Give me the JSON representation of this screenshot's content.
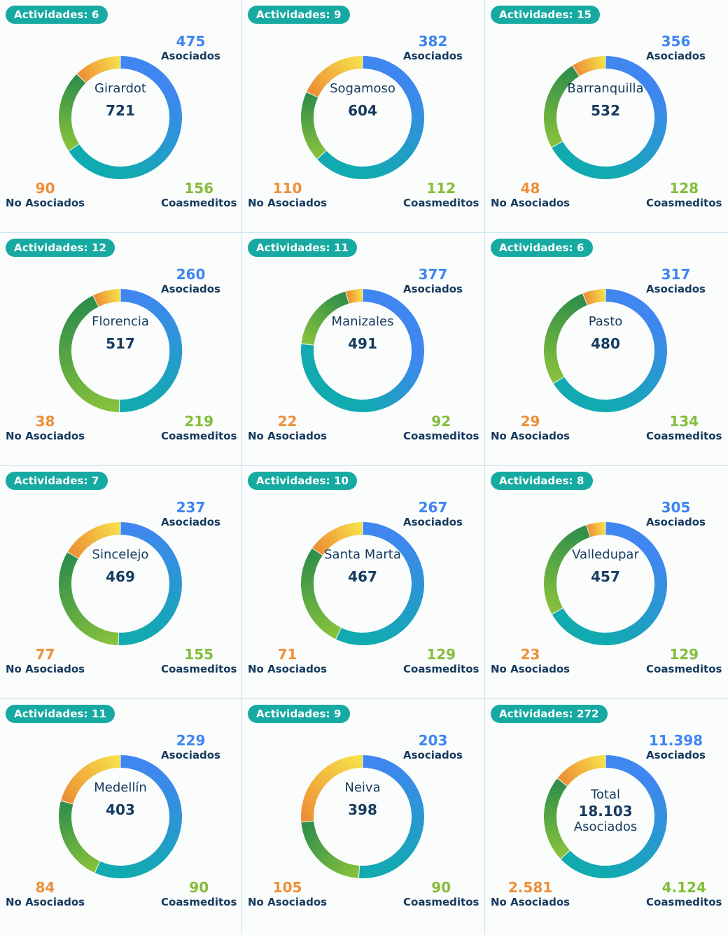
{
  "labels": {
    "activities_prefix": "Actividades: ",
    "asociados": "Asociados",
    "no_asociados": "No Asociados",
    "coasmeditos": "Coasmeditos"
  },
  "colors": {
    "badge": "#17aaa2",
    "asociados_text": "#3f86f0",
    "no_asociados_text": "#ef8f38",
    "coasmeditos_text": "#84bd3a",
    "center_text": "#163b5e"
  },
  "chart_data": [
    {
      "type": "pie",
      "title": "Girardot",
      "total": "721",
      "activities": 6,
      "series": [
        "Asociados",
        "Coasmeditos",
        "No Asociados"
      ],
      "values": [
        475,
        156,
        90
      ],
      "labels": {
        "asociados": "475",
        "coasmeditos": "156",
        "no_asociados": "90"
      }
    },
    {
      "type": "pie",
      "title": "Sogamoso",
      "total": "604",
      "activities": 9,
      "series": [
        "Asociados",
        "Coasmeditos",
        "No Asociados"
      ],
      "values": [
        382,
        112,
        110
      ],
      "labels": {
        "asociados": "382",
        "coasmeditos": "112",
        "no_asociados": "110"
      }
    },
    {
      "type": "pie",
      "title": "Barranquilla",
      "total": "532",
      "activities": 15,
      "series": [
        "Asociados",
        "Coasmeditos",
        "No Asociados"
      ],
      "values": [
        356,
        128,
        48
      ],
      "labels": {
        "asociados": "356",
        "coasmeditos": "128",
        "no_asociados": "48"
      }
    },
    {
      "type": "pie",
      "title": "Florencia",
      "total": "517",
      "activities": 12,
      "series": [
        "Asociados",
        "Coasmeditos",
        "No Asociados"
      ],
      "values": [
        260,
        219,
        38
      ],
      "labels": {
        "asociados": "260",
        "coasmeditos": "219",
        "no_asociados": "38"
      }
    },
    {
      "type": "pie",
      "title": "Manizales",
      "total": "491",
      "activities": 11,
      "series": [
        "Asociados",
        "Coasmeditos",
        "No Asociados"
      ],
      "values": [
        377,
        92,
        22
      ],
      "labels": {
        "asociados": "377",
        "coasmeditos": "92",
        "no_asociados": "22"
      }
    },
    {
      "type": "pie",
      "title": "Pasto",
      "total": "480",
      "activities": 6,
      "series": [
        "Asociados",
        "Coasmeditos",
        "No Asociados"
      ],
      "values": [
        317,
        134,
        29
      ],
      "labels": {
        "asociados": "317",
        "coasmeditos": "134",
        "no_asociados": "29"
      }
    },
    {
      "type": "pie",
      "title": "Sincelejo",
      "total": "469",
      "activities": 7,
      "series": [
        "Asociados",
        "Coasmeditos",
        "No Asociados"
      ],
      "values": [
        237,
        155,
        77
      ],
      "labels": {
        "asociados": "237",
        "coasmeditos": "155",
        "no_asociados": "77"
      }
    },
    {
      "type": "pie",
      "title": "Santa Marta",
      "total": "467",
      "activities": 10,
      "series": [
        "Asociados",
        "Coasmeditos",
        "No Asociados"
      ],
      "values": [
        267,
        129,
        71
      ],
      "labels": {
        "asociados": "267",
        "coasmeditos": "129",
        "no_asociados": "71"
      }
    },
    {
      "type": "pie",
      "title": "Valledupar",
      "total": "457",
      "activities": 8,
      "series": [
        "Asociados",
        "Coasmeditos",
        "No Asociados"
      ],
      "values": [
        305,
        129,
        23
      ],
      "labels": {
        "asociados": "305",
        "coasmeditos": "129",
        "no_asociados": "23"
      }
    },
    {
      "type": "pie",
      "title": "Medellín",
      "total": "403",
      "activities": 11,
      "series": [
        "Asociados",
        "Coasmeditos",
        "No Asociados"
      ],
      "values": [
        229,
        90,
        84
      ],
      "labels": {
        "asociados": "229",
        "coasmeditos": "90",
        "no_asociados": "84"
      }
    },
    {
      "type": "pie",
      "title": "Neiva",
      "total": "398",
      "activities": 9,
      "series": [
        "Asociados",
        "Coasmeditos",
        "No Asociados"
      ],
      "values": [
        203,
        90,
        105
      ],
      "labels": {
        "asociados": "203",
        "coasmeditos": "90",
        "no_asociados": "105"
      }
    },
    {
      "type": "pie",
      "title": "Total",
      "total": "18.103",
      "subtitle": "Asociados",
      "activities": 272,
      "summary": true,
      "series": [
        "Asociados",
        "Coasmeditos",
        "No Asociados"
      ],
      "values": [
        11398,
        4124,
        2581
      ],
      "labels": {
        "asociados": "11.398",
        "coasmeditos": "4.124",
        "no_asociados": "2.581"
      }
    }
  ]
}
